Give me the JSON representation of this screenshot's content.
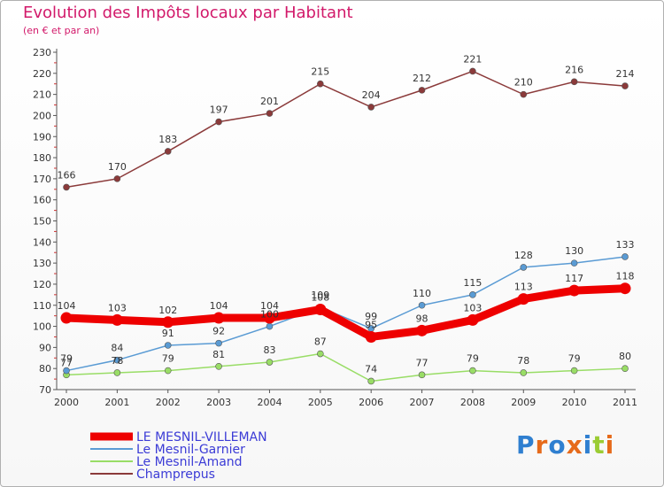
{
  "header": {
    "title": "Evolution des Impôts locaux par Habitant",
    "subtitle": "(en € et par an)"
  },
  "logo": {
    "text": "Proxiti"
  },
  "chart_data": {
    "type": "line",
    "title": "Evolution des Impôts locaux par Habitant",
    "subtitle": "(en € et par an)",
    "x": [
      "2000",
      "2001",
      "2002",
      "2003",
      "2004",
      "2005",
      "2006",
      "2007",
      "2008",
      "2009",
      "2010",
      "2011"
    ],
    "ylim": [
      70,
      230
    ],
    "yticks": [
      70,
      80,
      90,
      100,
      110,
      120,
      130,
      140,
      150,
      160,
      170,
      180,
      190,
      200,
      210,
      220,
      230
    ],
    "grid": false,
    "legend_position": "bottom-left",
    "series": [
      {
        "name": "LE MESNIL-VILLEMAN",
        "color": "#ee0000",
        "values": [
          104,
          103,
          102,
          104,
          104,
          108,
          95,
          98,
          103,
          113,
          117,
          118
        ],
        "labels": [
          "104",
          "103",
          "102",
          "104",
          "104",
          "108",
          "95",
          "98",
          "103",
          "113",
          "117",
          "118"
        ]
      },
      {
        "name": "Le Mesnil-Garnier",
        "color": "#5a9bd4",
        "values": [
          79,
          84,
          91,
          92,
          100,
          109,
          99,
          110,
          115,
          128,
          130,
          133
        ],
        "labels": [
          "79",
          "84",
          "91",
          "92",
          "100",
          "109",
          "99",
          "110",
          "115",
          "128",
          "130",
          "133"
        ]
      },
      {
        "name": "Le Mesnil-Amand",
        "color": "#99dd66",
        "values": [
          77,
          78,
          79,
          81,
          83,
          87,
          74,
          77,
          79,
          78,
          79,
          80
        ],
        "labels": [
          "77",
          "78",
          "79",
          "81",
          "83",
          "87",
          "74",
          "77",
          "79",
          "78",
          "79",
          "80"
        ]
      },
      {
        "name": "Champrepus",
        "color": "#8b3a3a",
        "values": [
          166,
          170,
          183,
          197,
          201,
          215,
          204,
          212,
          221,
          210,
          216,
          214
        ],
        "labels": [
          "166",
          "170",
          "183",
          "197",
          "201",
          "215",
          "204",
          "212",
          "221",
          "210",
          "216",
          "214"
        ]
      }
    ]
  }
}
